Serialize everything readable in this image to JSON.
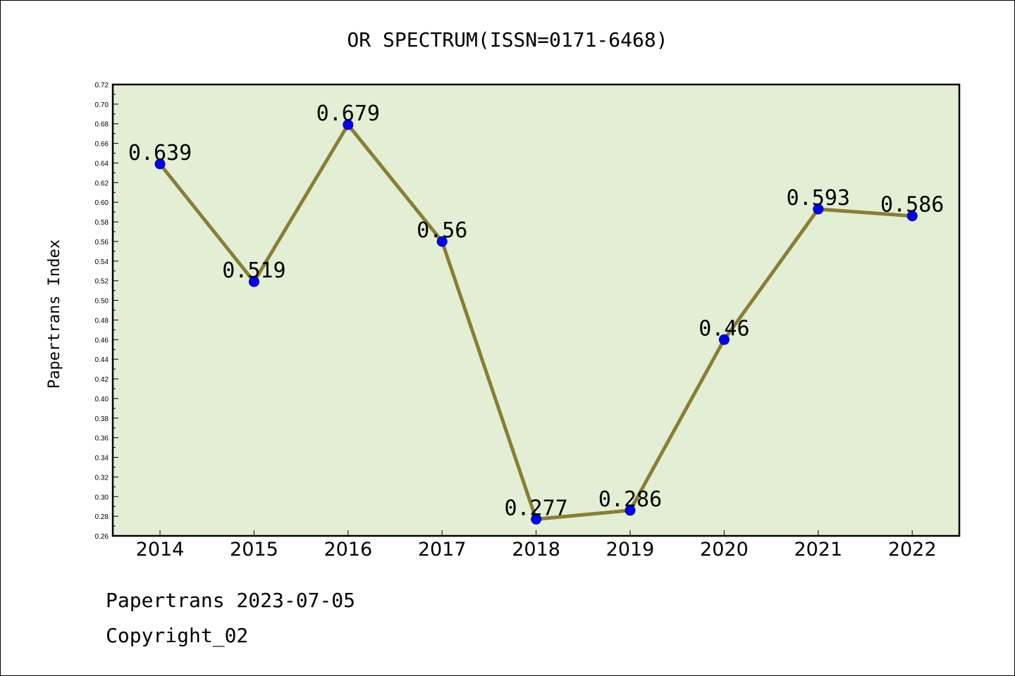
{
  "chart_data": {
    "type": "line",
    "title": "OR SPECTRUM(ISSN=0171-6468)",
    "xlabel": "",
    "ylabel": "Papertrans Index",
    "categories": [
      "2014",
      "2015",
      "2016",
      "2017",
      "2018",
      "2019",
      "2020",
      "2021",
      "2022"
    ],
    "series": [
      {
        "values": [
          0.639,
          0.519,
          0.679,
          0.56,
          0.277,
          0.286,
          0.46,
          0.593,
          0.586
        ],
        "labels": [
          "0.639",
          "0.519",
          "0.679",
          "0.56",
          "0.277",
          "0.286",
          "0.46",
          "0.593",
          "0.586"
        ]
      }
    ],
    "ylim": [
      0.26,
      0.72
    ],
    "ytick_step": 0.02,
    "grid": false,
    "colors": {
      "plot_background": "#e2efd4",
      "line": "#8b7d34",
      "marker": "#0000ff"
    }
  },
  "footer": {
    "line1": "Papertrans 2023-07-05",
    "line2": "Copyright_02"
  }
}
